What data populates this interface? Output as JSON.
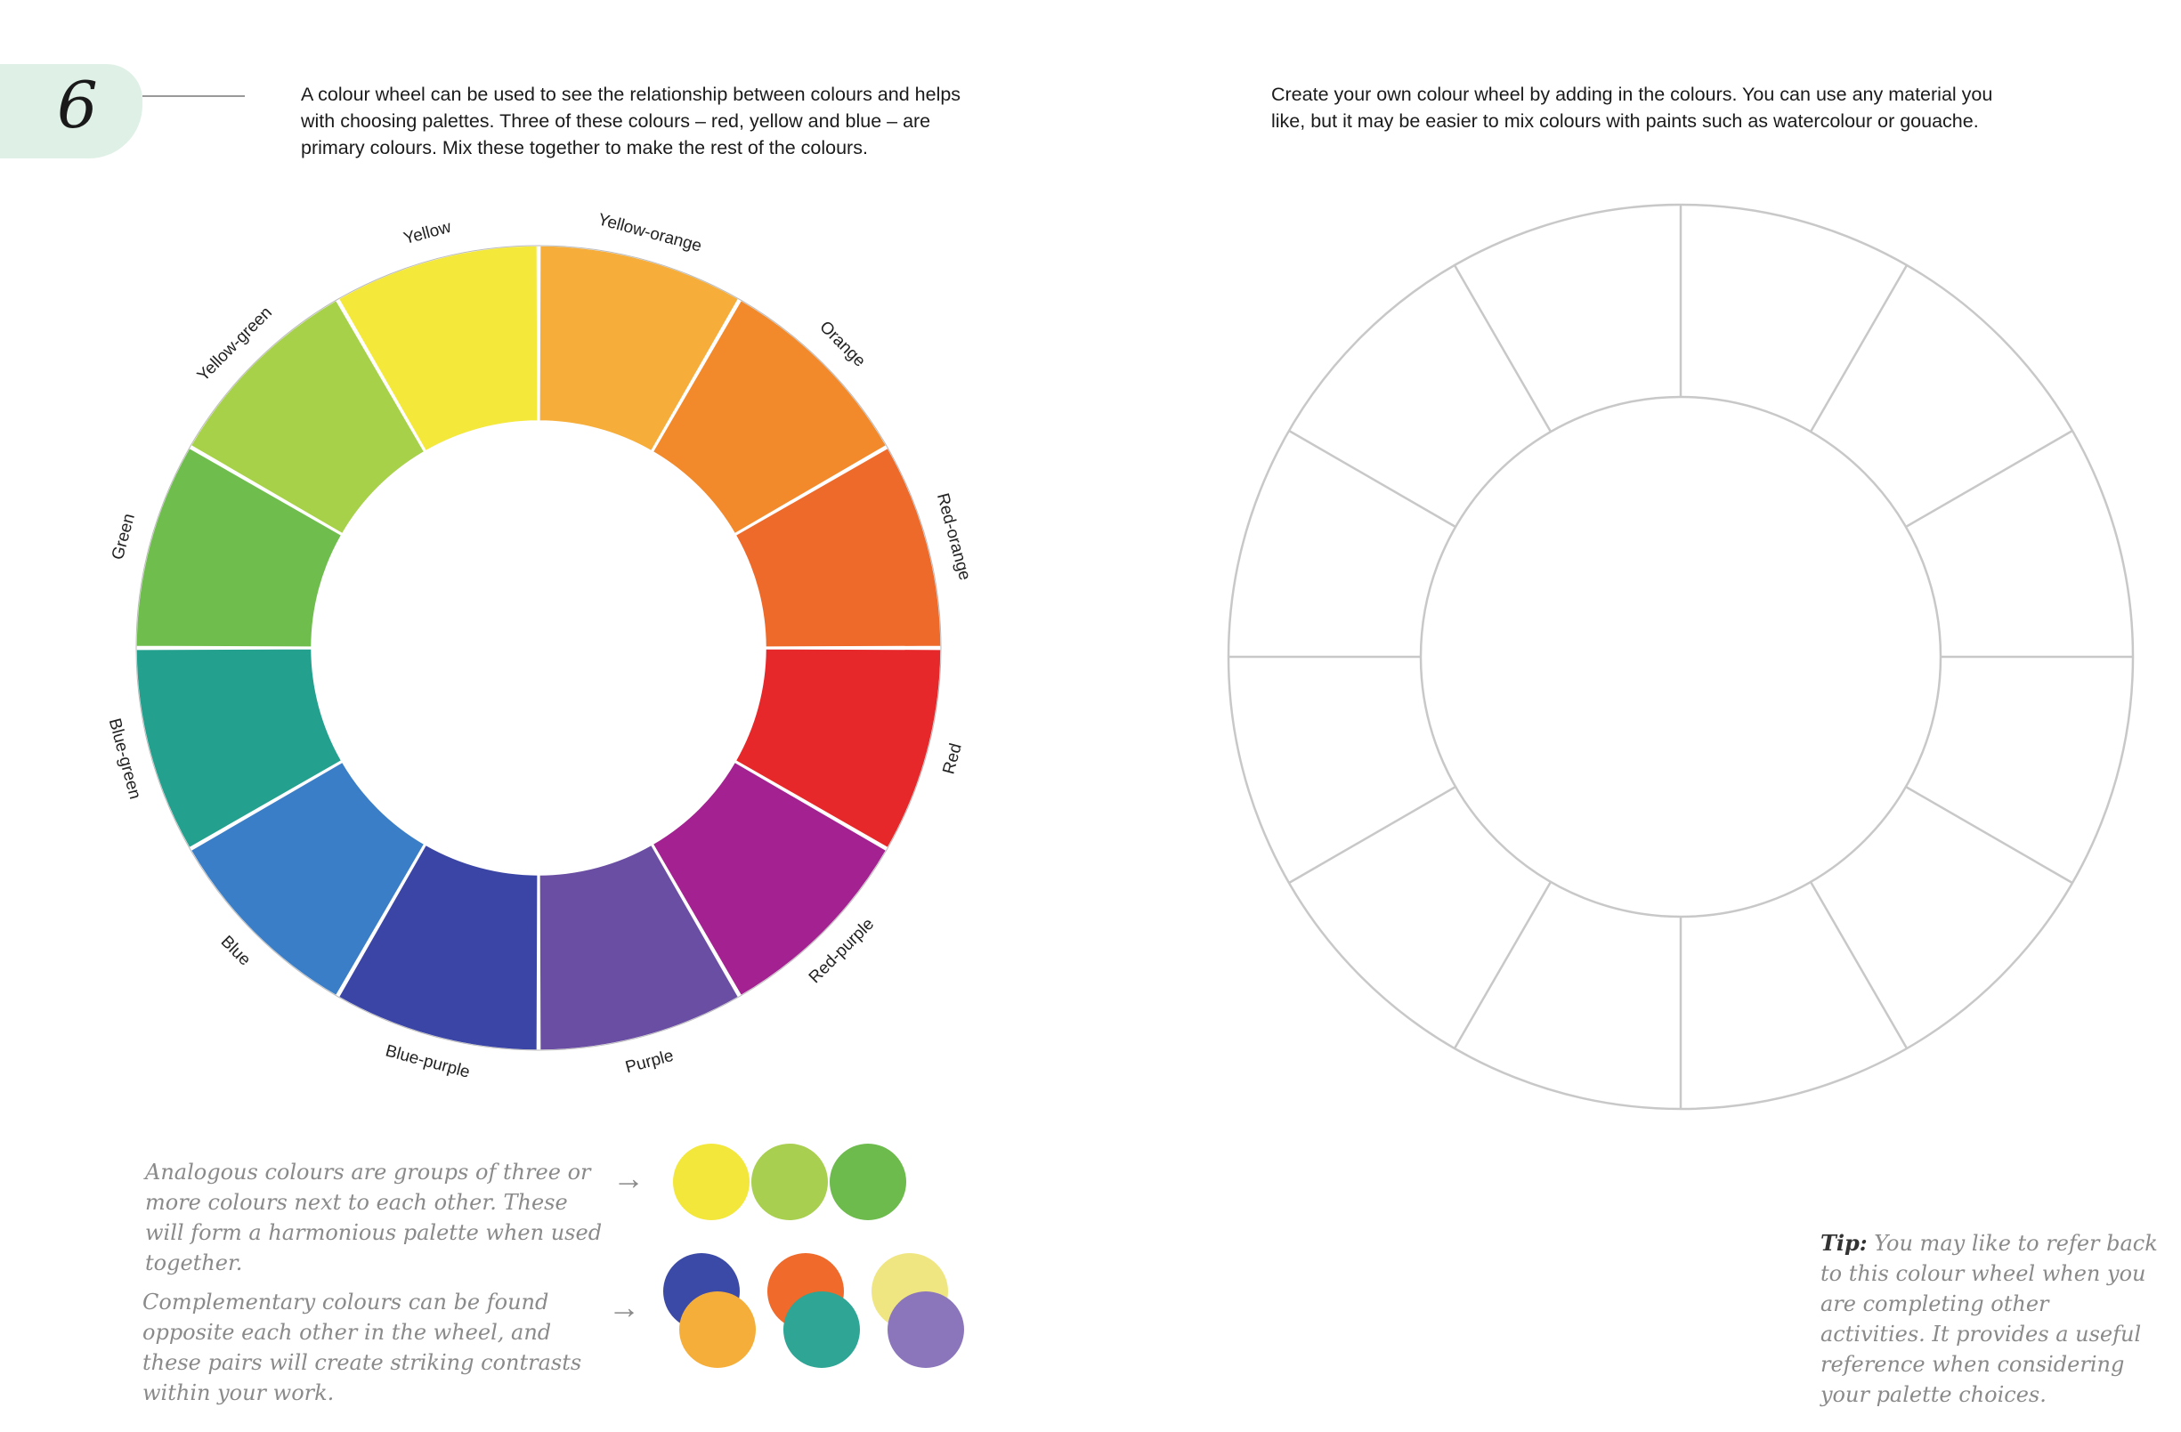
{
  "page": {
    "number": "6"
  },
  "left": {
    "intro": "A colour wheel can be used to see the relationship between colours and helps with choosing palettes. Three of these colours – red, yellow and blue – are primary colours. Mix these together to make the rest of the colours.",
    "wheel": {
      "segments": [
        {
          "label": "Yellow",
          "color": "#f4e83a"
        },
        {
          "label": "Yellow-orange",
          "color": "#f6ad3a"
        },
        {
          "label": "Orange",
          "color": "#f28a2c"
        },
        {
          "label": "Red-orange",
          "color": "#ee6a2a"
        },
        {
          "label": "Red",
          "color": "#e7282a"
        },
        {
          "label": "Red-purple",
          "color": "#a42191"
        },
        {
          "label": "Purple",
          "color": "#6a4ea4"
        },
        {
          "label": "Blue-purple",
          "color": "#3b45a6"
        },
        {
          "label": "Blue",
          "color": "#3a7ec8"
        },
        {
          "label": "Blue-green",
          "color": "#24a08e"
        },
        {
          "label": "Green",
          "color": "#6fbd4d"
        },
        {
          "label": "Yellow-green",
          "color": "#a6d148"
        }
      ]
    },
    "analogous": {
      "text": "Analogous colours are groups of three or more colours next to each other. These will form a harmonious palette when used together.",
      "swatches": [
        "#f2e73a",
        "#a9cf50",
        "#6cbb4c"
      ]
    },
    "complementary": {
      "text": "Complementary colours can be found opposite each other in the wheel, and these pairs will create striking contrasts within your work.",
      "pairs": [
        {
          "back": "#3b4aa6",
          "front": "#f6ae3a"
        },
        {
          "back": "#ef6a2b",
          "front": "#2ea595"
        },
        {
          "back": "#efe682",
          "front": "#8b76bb"
        }
      ]
    },
    "arrow_glyph": "→"
  },
  "right": {
    "intro": "Create your own colour wheel by adding in the colours. You can use any material you like, but it may be easier to mix colours with paints such as watercolour or gouache.",
    "tip_lead": "Tip:",
    "tip_text": "You may like to refer back to this colour wheel when you are completing other activities. It provides a useful reference when considering your palette choices."
  },
  "colors": {
    "page_tab": "#d9ede2",
    "outline": "#c8c8c8"
  }
}
